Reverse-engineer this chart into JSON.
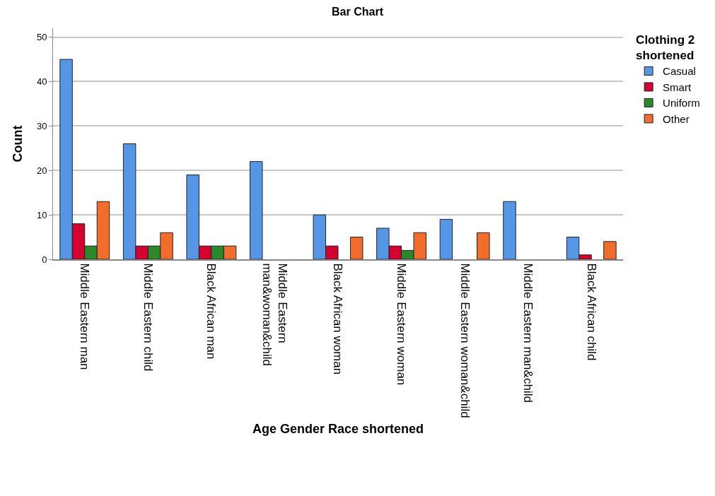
{
  "chart_data": {
    "type": "bar",
    "title": "Bar Chart",
    "xlabel": "Age Gender Race shortened",
    "ylabel": "Count",
    "legend_title": "Clothing 2 shortened",
    "categories": [
      "Middle Eastern man",
      "Middle Eastern child",
      "Black African man",
      "Middle Eastern man&woman&child",
      "Black African woman",
      "Middle Eastern woman",
      "Middle Eastern woman&child",
      "Middle Eastern man&child",
      "Black African child"
    ],
    "series": [
      {
        "name": "Casual",
        "color": "#5596e6",
        "values": [
          45,
          26,
          19,
          22,
          10,
          7,
          9,
          13,
          5
        ]
      },
      {
        "name": "Smart",
        "color": "#d5002f",
        "values": [
          8,
          3,
          3,
          0,
          3,
          3,
          0,
          0,
          1
        ]
      },
      {
        "name": "Uniform",
        "color": "#2a8a2a",
        "values": [
          3,
          3,
          3,
          0,
          0,
          2,
          0,
          0,
          0
        ]
      },
      {
        "name": "Other",
        "color": "#f26d2b",
        "values": [
          13,
          6,
          3,
          0,
          5,
          6,
          6,
          0,
          4
        ]
      }
    ],
    "ylim": [
      0,
      52
    ],
    "yticks": [
      0,
      10,
      20,
      30,
      40,
      50
    ],
    "grid": "y",
    "legend": "top right"
  }
}
